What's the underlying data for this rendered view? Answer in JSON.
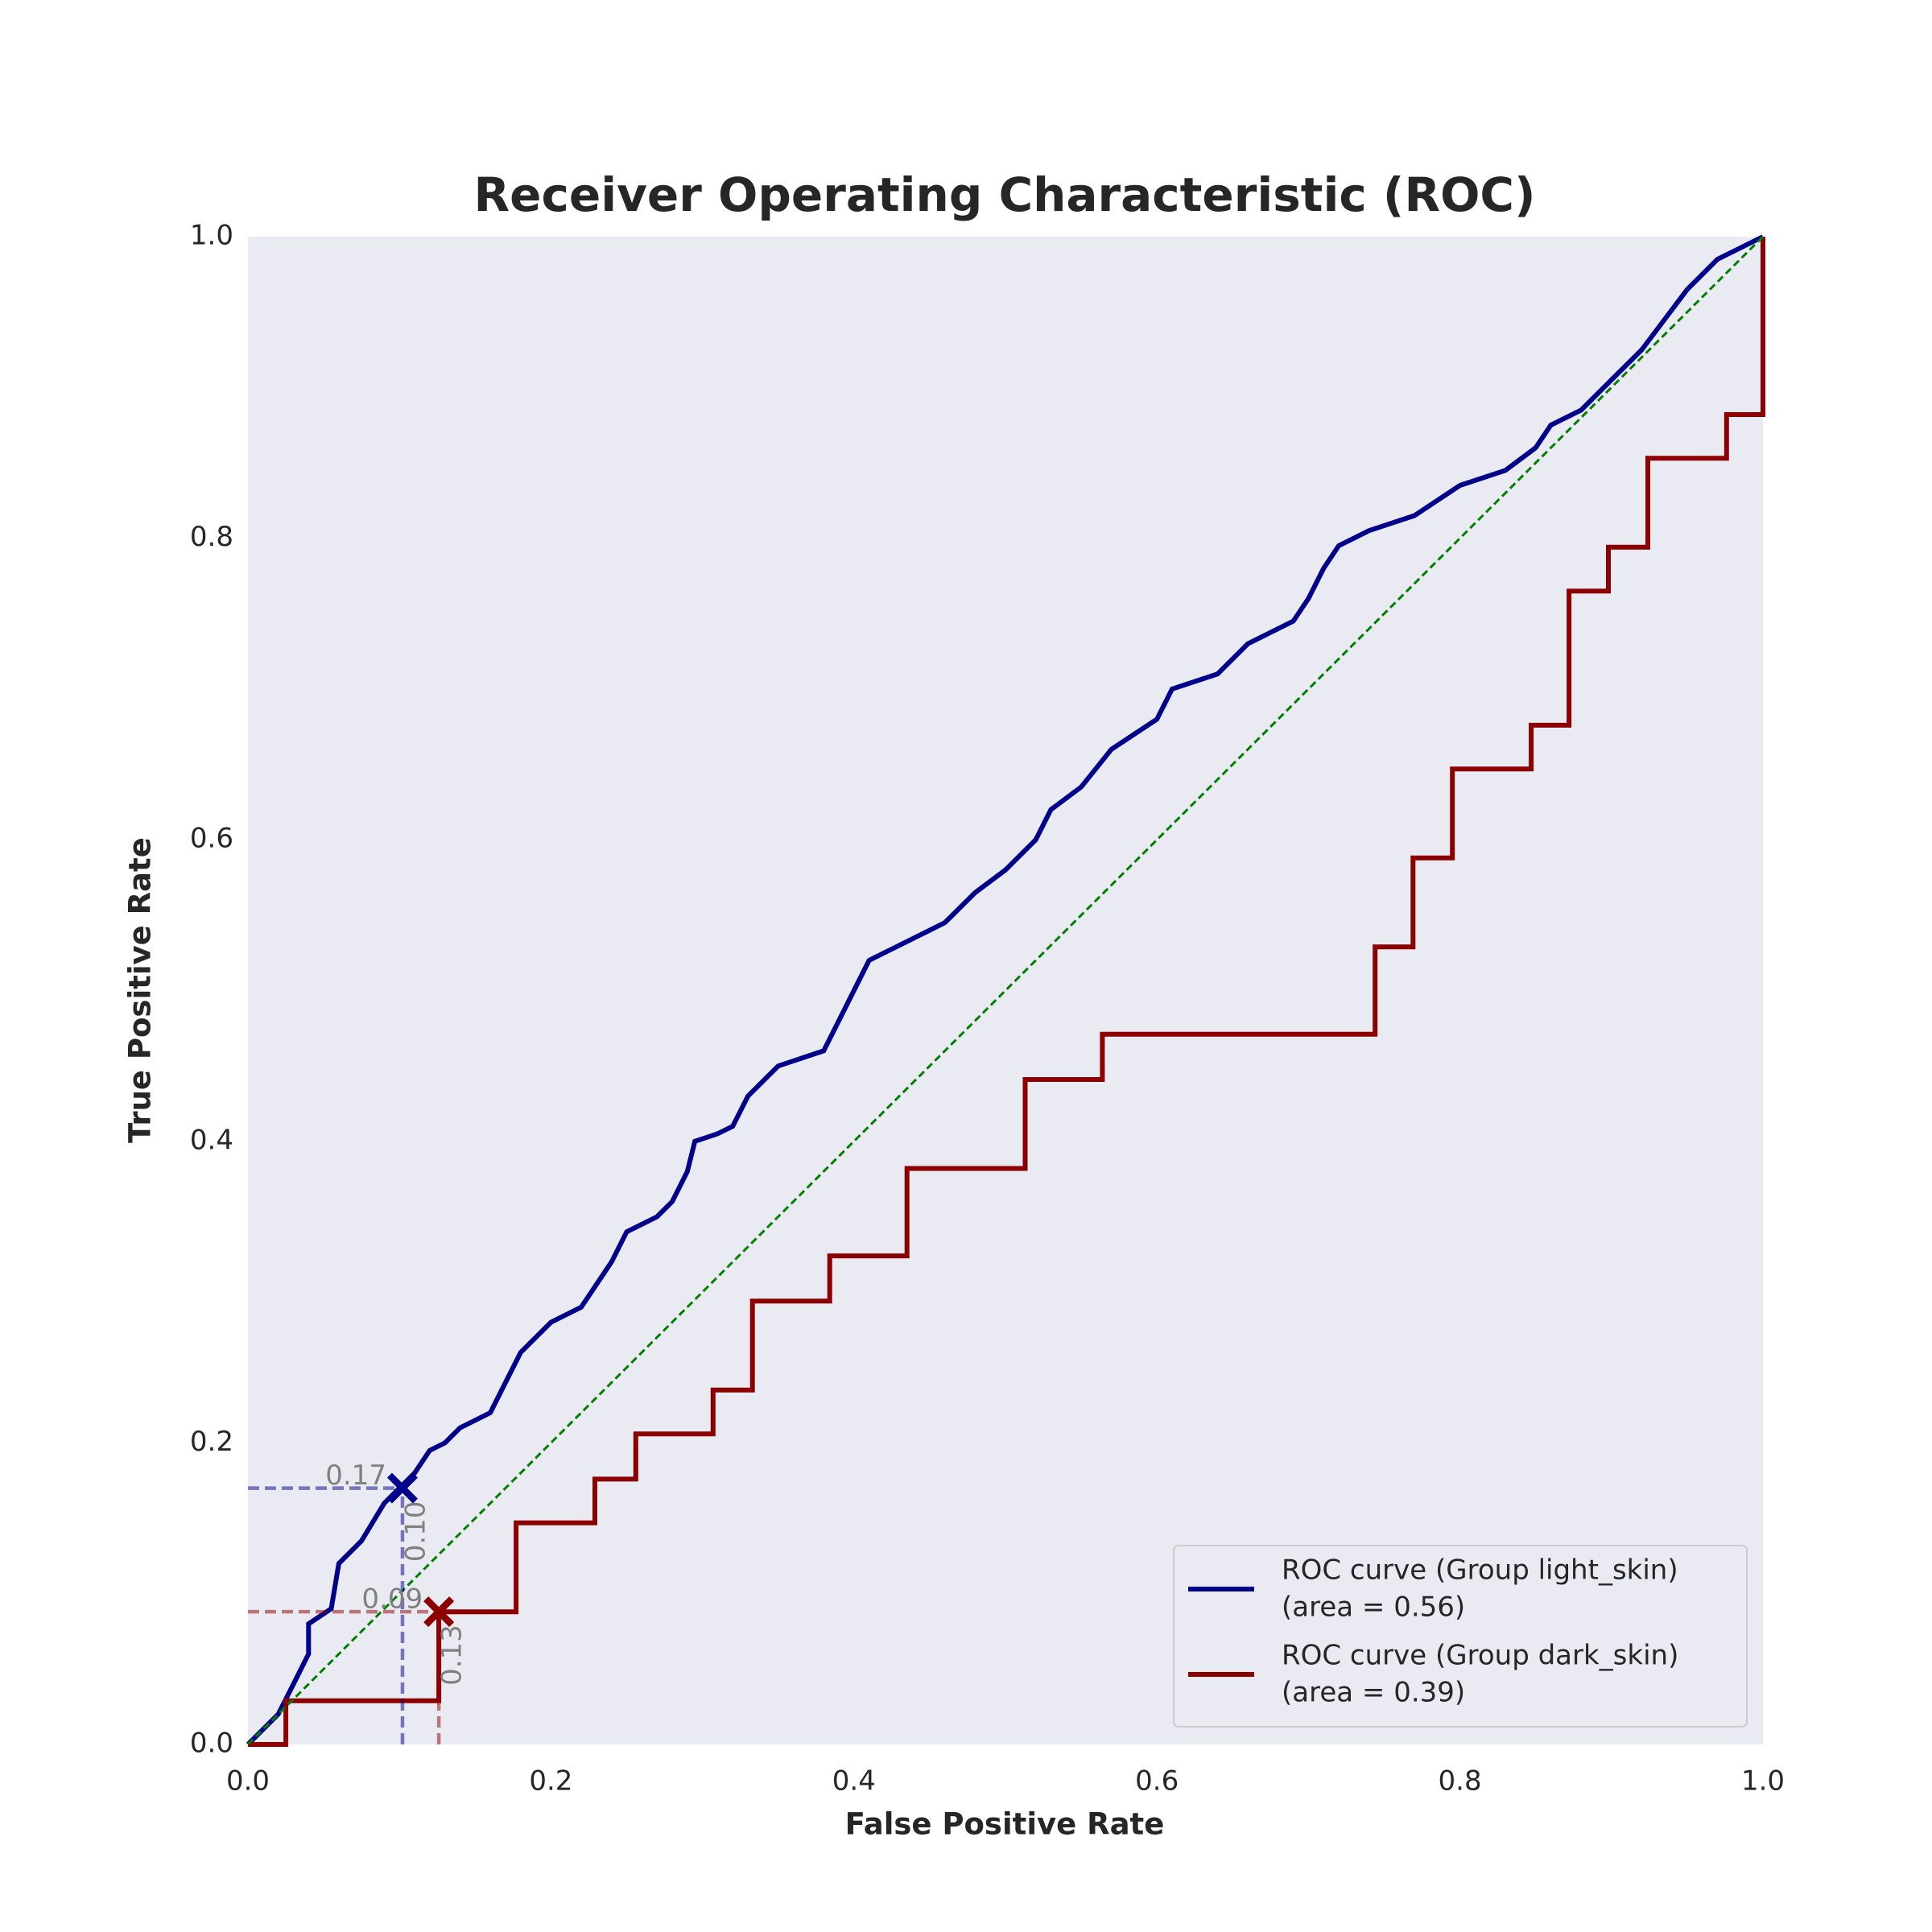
{
  "chart_data": {
    "type": "line",
    "title": "Receiver Operating Characteristic (ROC)",
    "x_label": "False Positive Rate",
    "y_label": "True Positive Rate",
    "xlim": [
      0,
      1
    ],
    "ylim": [
      0,
      1
    ],
    "xticks": [
      {
        "value": 0,
        "label": "0.0"
      },
      0.2,
      0.4,
      0.6,
      0.8,
      {
        "value": 1,
        "label": "1.0"
      }
    ],
    "yticks": [
      {
        "value": 0,
        "label": "0.0"
      },
      0.2,
      0.4,
      0.6,
      0.8,
      {
        "value": 1,
        "label": "1.0"
      }
    ],
    "grid": false,
    "legend": "lower right",
    "reference_line_color": "#008000",
    "series": [
      {
        "name": "ROC curve (Group light_skin)",
        "area_label": "(area = 0.56)",
        "color": "#00008b",
        "x": [
          0,
          0.02,
          0.03,
          0.04,
          0.04,
          0.055,
          0.06,
          0.075,
          0.09,
          0.1,
          0.11,
          0.12,
          0.13,
          0.14,
          0.16,
          0.17,
          0.18,
          0.2,
          0.22,
          0.24,
          0.25,
          0.27,
          0.28,
          0.29,
          0.295,
          0.31,
          0.32,
          0.33,
          0.35,
          0.38,
          0.39,
          0.4,
          0.41,
          0.44,
          0.46,
          0.48,
          0.5,
          0.52,
          0.53,
          0.55,
          0.57,
          0.6,
          0.61,
          0.64,
          0.66,
          0.69,
          0.7,
          0.71,
          0.72,
          0.74,
          0.77,
          0.8,
          0.83,
          0.85,
          0.86,
          0.88,
          0.9,
          0.92,
          0.935,
          0.95,
          0.97,
          1.0
        ],
        "values": [
          0,
          0.02,
          0.04,
          0.06,
          0.08,
          0.09,
          0.12,
          0.135,
          0.16,
          0.17,
          0.18,
          0.195,
          0.2,
          0.21,
          0.22,
          0.24,
          0.26,
          0.28,
          0.29,
          0.32,
          0.34,
          0.35,
          0.36,
          0.38,
          0.4,
          0.405,
          0.41,
          0.43,
          0.45,
          0.46,
          0.48,
          0.5,
          0.52,
          0.535,
          0.545,
          0.565,
          0.58,
          0.6,
          0.62,
          0.635,
          0.66,
          0.68,
          0.7,
          0.71,
          0.73,
          0.745,
          0.76,
          0.78,
          0.795,
          0.805,
          0.815,
          0.835,
          0.845,
          0.86,
          0.875,
          0.885,
          0.905,
          0.925,
          0.945,
          0.965,
          0.985,
          1.0
        ],
        "marker": {
          "x": {
            "value": 0.102,
            "label": "0.10"
          },
          "y": 0.17
        }
      },
      {
        "name": "ROC curve (Group dark_skin)",
        "area_label": "(area = 0.39)",
        "color": "#8b0000",
        "x": [
          0,
          0.025,
          0.025,
          0.126,
          0.126,
          0.177,
          0.177,
          0.229,
          0.229,
          0.256,
          0.256,
          0.307,
          0.307,
          0.333,
          0.333,
          0.384,
          0.384,
          0.435,
          0.435,
          0.513,
          0.513,
          0.564,
          0.564,
          0.744,
          0.744,
          0.769,
          0.769,
          0.795,
          0.795,
          0.847,
          0.847,
          0.872,
          0.872,
          0.898,
          0.898,
          0.924,
          0.924,
          0.976,
          0.976,
          1.0,
          1.0
        ],
        "values": [
          0,
          0,
          0.029,
          0.029,
          0.088,
          0.088,
          0.147,
          0.147,
          0.176,
          0.176,
          0.206,
          0.206,
          0.235,
          0.235,
          0.294,
          0.294,
          0.324,
          0.324,
          0.382,
          0.382,
          0.441,
          0.441,
          0.471,
          0.471,
          0.529,
          0.529,
          0.588,
          0.588,
          0.647,
          0.647,
          0.676,
          0.676,
          0.765,
          0.765,
          0.794,
          0.794,
          0.853,
          0.853,
          0.882,
          0.882,
          1.0
        ],
        "marker": {
          "x": {
            "value": 0.126,
            "label": "0.13"
          },
          "y": {
            "value": 0.088,
            "label": "0.09"
          }
        }
      }
    ]
  }
}
